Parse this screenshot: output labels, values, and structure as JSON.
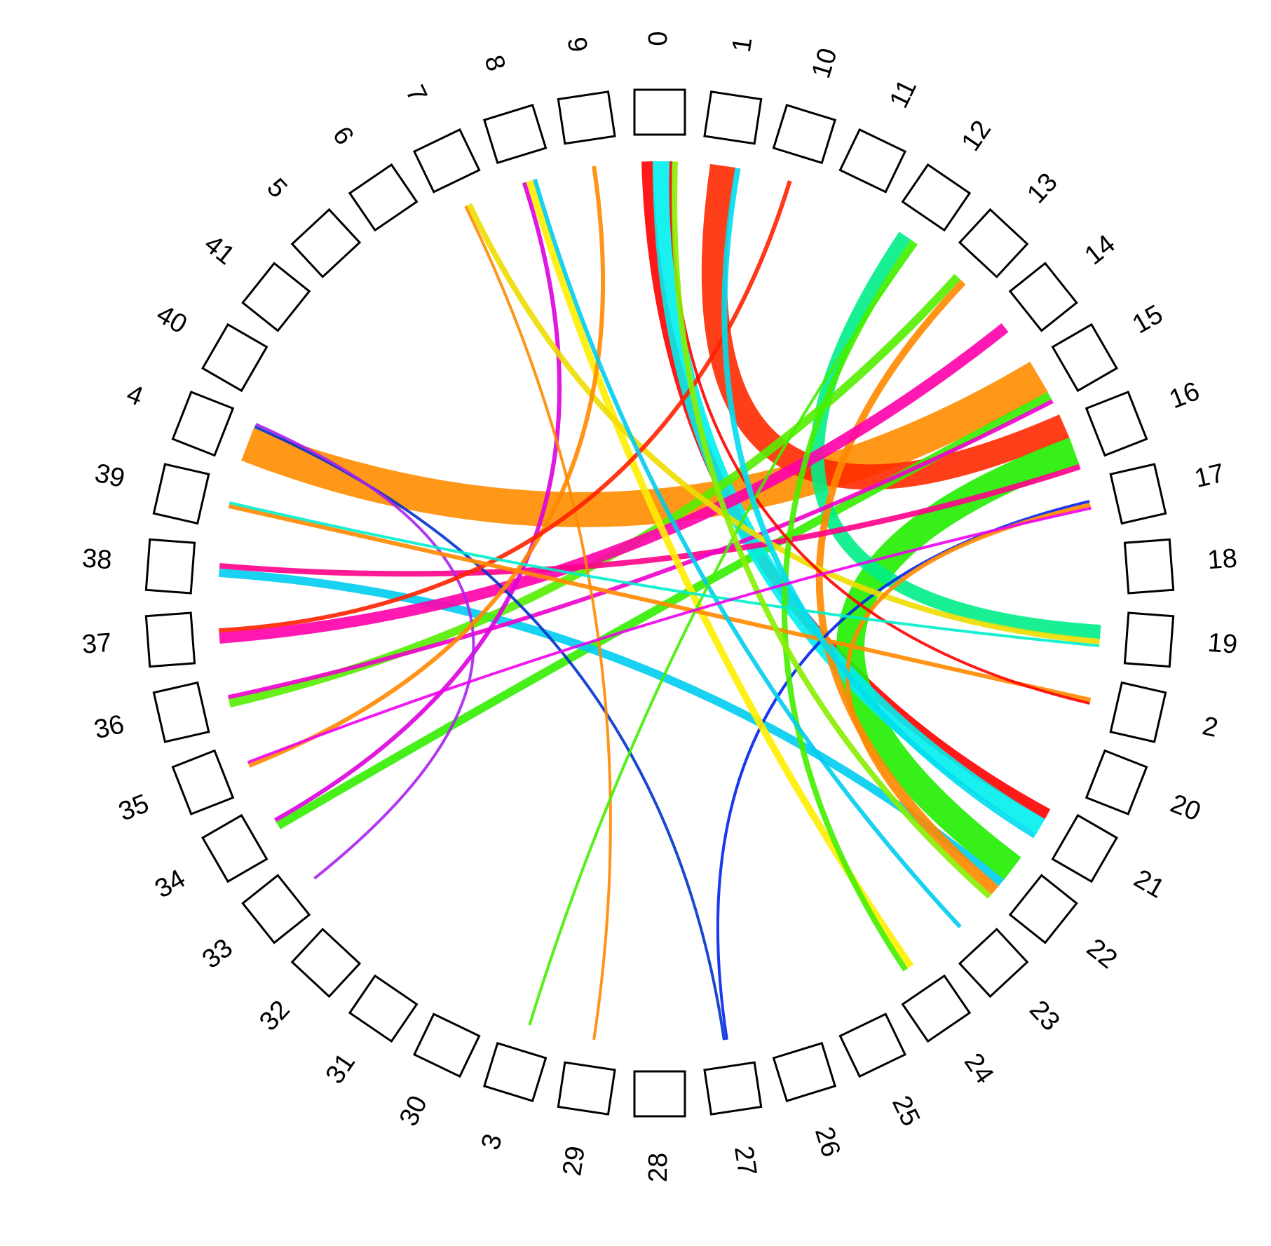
{
  "chart_data": {
    "type": "chord",
    "categories": [
      "0",
      "1",
      "10",
      "11",
      "12",
      "13",
      "14",
      "15",
      "16",
      "17",
      "18",
      "19",
      "2",
      "20",
      "21",
      "22",
      "23",
      "24",
      "25",
      "26",
      "27",
      "28",
      "29",
      "3",
      "30",
      "31",
      "32",
      "33",
      "34",
      "35",
      "36",
      "37",
      "38",
      "39",
      "4",
      "40",
      "41",
      "5",
      "6",
      "7",
      "8",
      "9"
    ],
    "links": [
      {
        "from": "4",
        "to": "15",
        "value": 25,
        "color": "#ff8c00"
      },
      {
        "from": "1",
        "to": "16",
        "value": 18,
        "color": "#ff2a00"
      },
      {
        "from": "0",
        "to": "21",
        "value": 8,
        "color": "#ff0000"
      },
      {
        "from": "16",
        "to": "22",
        "value": 20,
        "color": "#22ee00"
      },
      {
        "from": "15",
        "to": "34",
        "value": 6,
        "color": "#33ee00"
      },
      {
        "from": "21",
        "to": "0",
        "value": 12,
        "color": "#00eeee"
      },
      {
        "from": "22",
        "to": "38",
        "value": 6,
        "color": "#00ccee"
      },
      {
        "from": "19",
        "to": "12",
        "value": 10,
        "color": "#00ee88"
      },
      {
        "from": "13",
        "to": "36",
        "value": 6,
        "color": "#55ee00"
      },
      {
        "from": "13",
        "to": "22",
        "value": 5,
        "color": "#ff8800"
      },
      {
        "from": "37",
        "to": "14",
        "value": 8,
        "color": "#ff00aa"
      },
      {
        "from": "38",
        "to": "16",
        "value": 4,
        "color": "#ff0088"
      },
      {
        "from": "36",
        "to": "15",
        "value": 3,
        "color": "#ee00cc"
      },
      {
        "from": "34",
        "to": "8",
        "value": 3,
        "color": "#dd00dd"
      },
      {
        "from": "27",
        "to": "17",
        "value": 2,
        "color": "#0022ee"
      },
      {
        "from": "27",
        "to": "4",
        "value": 2,
        "color": "#0033cc"
      },
      {
        "from": "29",
        "to": "7",
        "value": 2,
        "color": "#ff8800"
      },
      {
        "from": "33",
        "to": "4",
        "value": 2,
        "color": "#aa22ee"
      },
      {
        "from": "8",
        "to": "24",
        "value": 5,
        "color": "#ffee00"
      },
      {
        "from": "7",
        "to": "19",
        "value": 4,
        "color": "#eedd00"
      },
      {
        "from": "9",
        "to": "35",
        "value": 3,
        "color": "#ff8800"
      },
      {
        "from": "10",
        "to": "37",
        "value": 3,
        "color": "#ff2200"
      },
      {
        "from": "12",
        "to": "24",
        "value": 4,
        "color": "#44ee00"
      },
      {
        "from": "17",
        "to": "22",
        "value": 3,
        "color": "#ff8800"
      },
      {
        "from": "2",
        "to": "39",
        "value": 3,
        "color": "#ff8800"
      },
      {
        "from": "2",
        "to": "0",
        "value": 2,
        "color": "#ff0000"
      },
      {
        "from": "23",
        "to": "8",
        "value": 3,
        "color": "#00ccee"
      },
      {
        "from": "3",
        "to": "12",
        "value": 2,
        "color": "#44ee00"
      },
      {
        "from": "19",
        "to": "39",
        "value": 2,
        "color": "#00eecc"
      },
      {
        "from": "0",
        "to": "22",
        "value": 4,
        "color": "#88ee00"
      },
      {
        "from": "1",
        "to": "21",
        "value": 4,
        "color": "#00ddee"
      },
      {
        "from": "17",
        "to": "35",
        "value": 2,
        "color": "#ee00ee"
      }
    ]
  }
}
